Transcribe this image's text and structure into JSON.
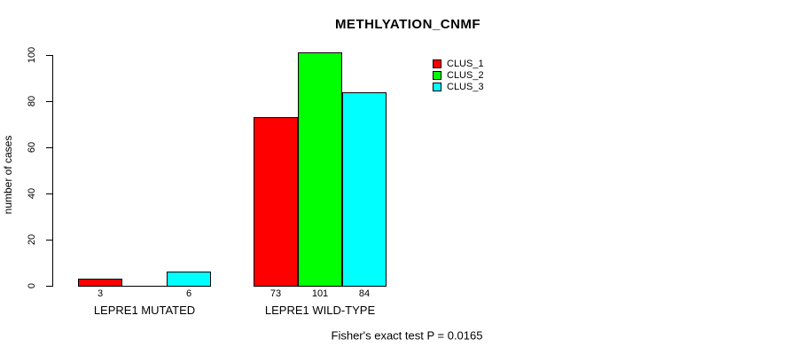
{
  "chart_data": {
    "type": "bar",
    "title": "METHLYATION_CNMF",
    "xlabel": "",
    "ylabel": "number of cases",
    "categories": [
      "LEPRE1 MUTATED",
      "LEPRE1 WILD-TYPE"
    ],
    "series": [
      {
        "name": "CLUS_1",
        "color": "#ff0000",
        "values": [
          3,
          73
        ]
      },
      {
        "name": "CLUS_2",
        "color": "#00ff00",
        "values": [
          0,
          101
        ]
      },
      {
        "name": "CLUS_3",
        "color": "#00ffff",
        "values": [
          6,
          84
        ]
      }
    ],
    "bar_value_labels": [
      "3",
      "6",
      "73",
      "101",
      "84"
    ],
    "yticks": [
      0,
      20,
      40,
      60,
      80,
      100
    ],
    "ylim": [
      0,
      101
    ],
    "grid": false,
    "legend_position": "right-of-plot",
    "annotation": "Fisher's exact test P = 0.0165"
  }
}
